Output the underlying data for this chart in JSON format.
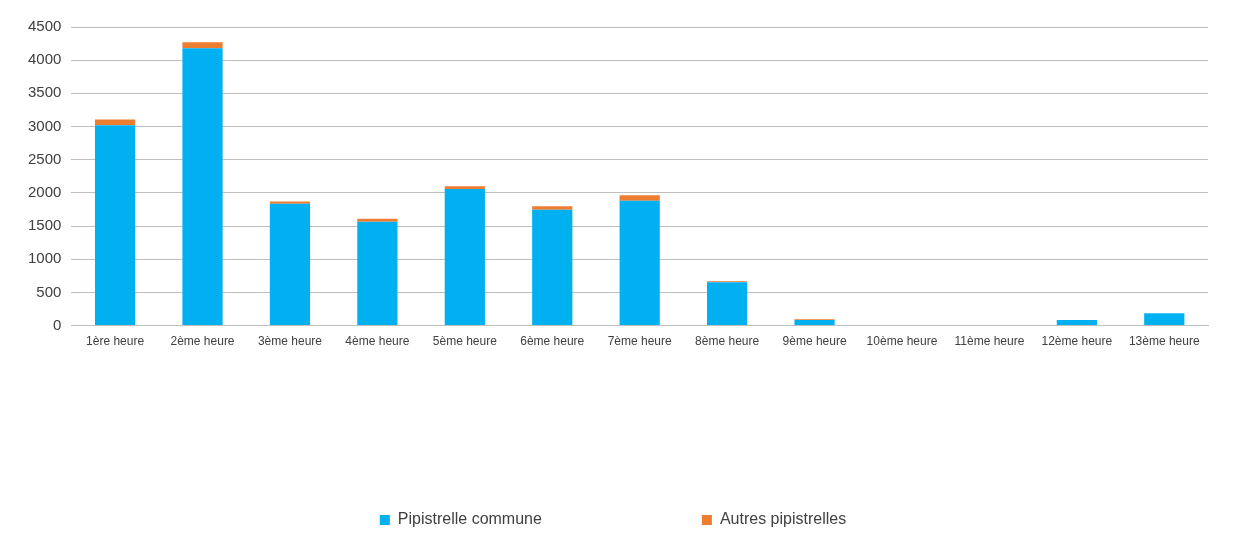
{
  "chart_data": {
    "type": "bar",
    "stacked": true,
    "categories": [
      "1ère heure",
      "2ème heure",
      "3ème heure",
      "4ème heure",
      "5ème heure",
      "6ème heure",
      "7ème heure",
      "8ème heure",
      "9ème heure",
      "10ème heure",
      "11ème heure",
      "12ème heure",
      "13ème heure"
    ],
    "series": [
      {
        "name": "Pipistrelle commune",
        "color": "#00b0f0",
        "values": [
          3020,
          4180,
          1835,
          1565,
          2060,
          1745,
          1880,
          655,
          85,
          0,
          0,
          85,
          185
        ]
      },
      {
        "name": "Autres pipistrelles",
        "color": "#ed7d31",
        "values": [
          85,
          90,
          35,
          45,
          40,
          55,
          85,
          15,
          10,
          0,
          0,
          0,
          0
        ]
      }
    ],
    "ylim": [
      0,
      4500
    ],
    "yticks": [
      0,
      500,
      1000,
      1500,
      2000,
      2500,
      3000,
      3500,
      4000,
      4500
    ],
    "grid": "y",
    "legend": "bottom"
  }
}
